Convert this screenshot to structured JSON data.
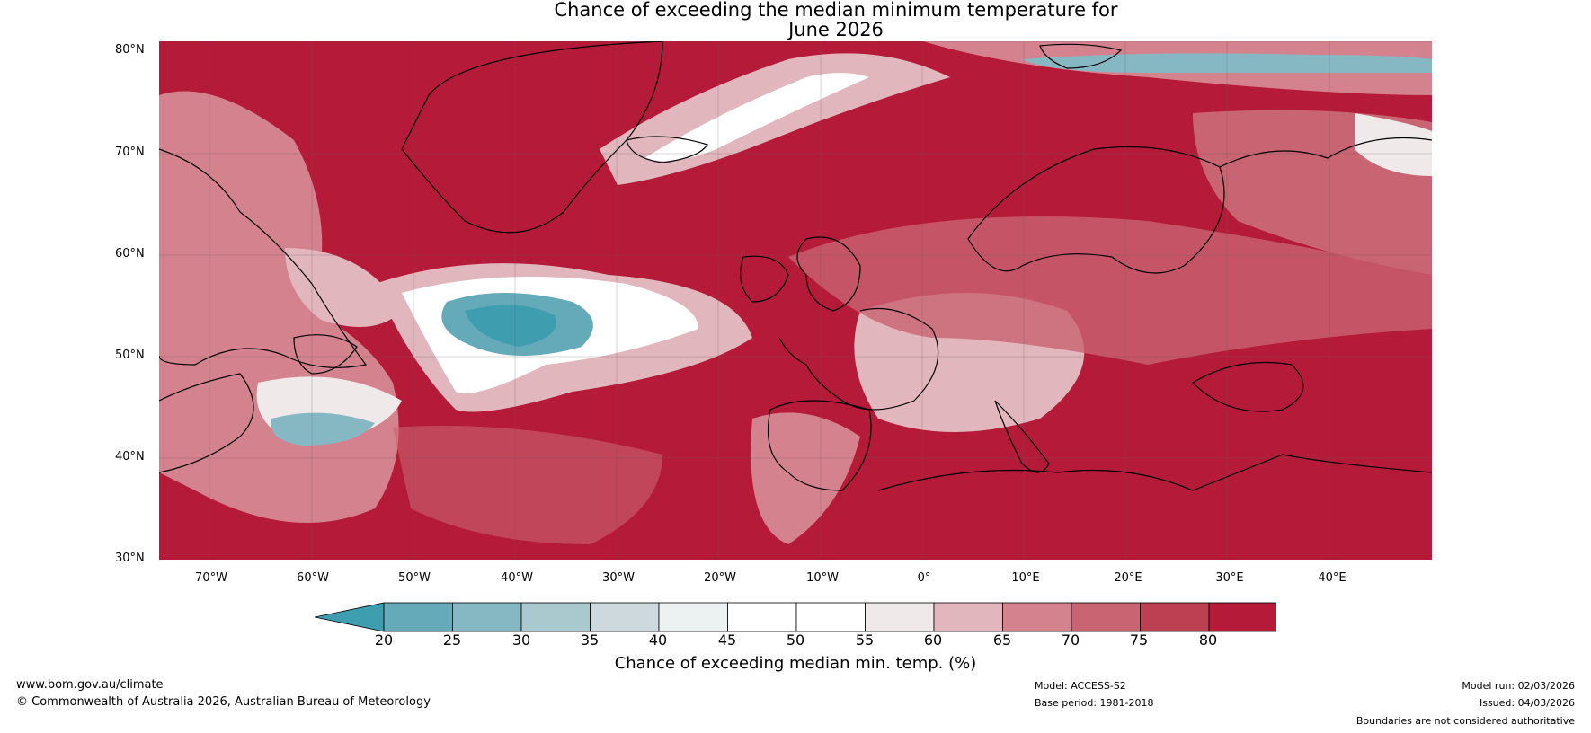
{
  "title_line1": "Chance of exceeding the median minimum temperature for",
  "title_line2": "June 2026",
  "lat_labels": [
    "80°N",
    "70°N",
    "60°N",
    "50°N",
    "40°N",
    "30°N"
  ],
  "lon_labels": [
    "70°W",
    "60°W",
    "50°W",
    "40°W",
    "30°W",
    "20°W",
    "10°W",
    "0°",
    "10°E",
    "20°E",
    "30°E",
    "40°E"
  ],
  "colorbar": {
    "title": "Chance of exceeding median min. temp. (%)",
    "ticks": [
      "20",
      "25",
      "30",
      "35",
      "40",
      "45",
      "50",
      "55",
      "60",
      "65",
      "70",
      "75",
      "80"
    ],
    "colors": [
      "#3f9db0",
      "#64aab9",
      "#86b8c4",
      "#aac9ce",
      "#cdd9dc",
      "#ecf2f2",
      "#ffffff",
      "#ffffff",
      "#efe9ea",
      "#e2b6bd",
      "#d4828e",
      "#c96472",
      "#bd3f52",
      "#b51b38",
      "#b51b38"
    ]
  },
  "footer": {
    "url": "www.bom.gov.au/climate",
    "copyright": "© Commonwealth of Australia 2026, Australian Bureau of Meteorology",
    "model": "Model: ACCESS-S2",
    "base_period": "Base period: 1981-2018",
    "model_run": "Model run: 02/03/2026",
    "issued": "Issued: 04/03/2026",
    "disclaimer": "Boundaries are not considered authoritative"
  }
}
